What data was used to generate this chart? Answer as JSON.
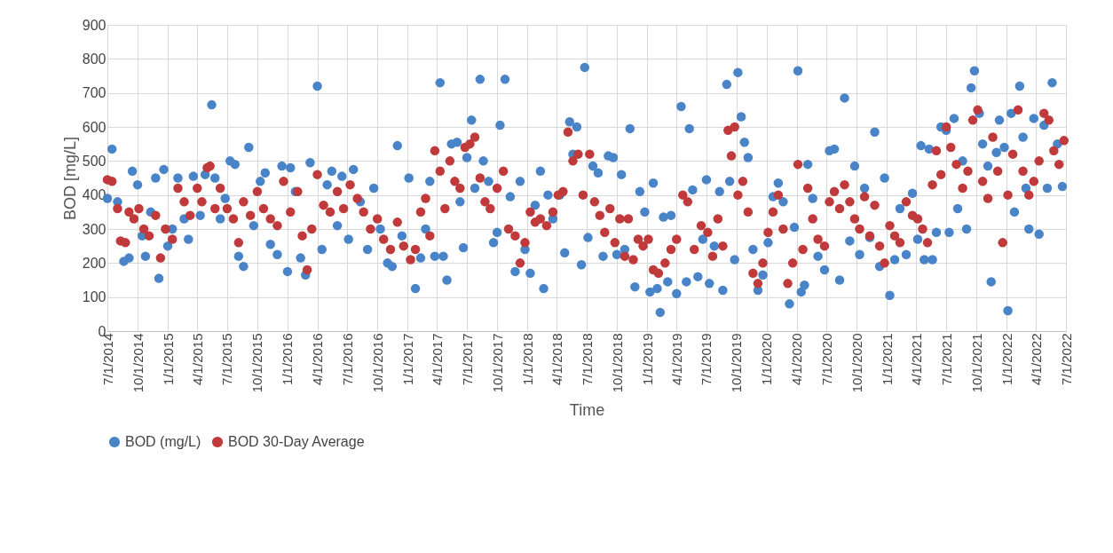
{
  "chart_data": {
    "type": "scatter",
    "xlabel": "Time",
    "ylabel": "BOD [mg/L]",
    "grid": true,
    "legend": "bottom",
    "marker": "circle",
    "xlim": [
      "2014-07-01",
      "2022-07-01"
    ],
    "xticks": [
      {
        "value": "2014-07-01",
        "label": "7/1/2014"
      },
      {
        "value": "2014-10-01",
        "label": "10/1/2014"
      },
      {
        "value": "2015-01-01",
        "label": "1/1/2015"
      },
      {
        "value": "2015-04-01",
        "label": "4/1/2015"
      },
      {
        "value": "2015-07-01",
        "label": "7/1/2015"
      },
      {
        "value": "2015-10-01",
        "label": "10/1/2015"
      },
      {
        "value": "2016-01-01",
        "label": "1/1/2016"
      },
      {
        "value": "2016-04-01",
        "label": "4/1/2016"
      },
      {
        "value": "2016-07-01",
        "label": "7/1/2016"
      },
      {
        "value": "2016-10-01",
        "label": "10/1/2016"
      },
      {
        "value": "2017-01-01",
        "label": "1/1/2017"
      },
      {
        "value": "2017-04-01",
        "label": "4/1/2017"
      },
      {
        "value": "2017-07-01",
        "label": "7/1/2017"
      },
      {
        "value": "2017-10-01",
        "label": "10/1/2017"
      },
      {
        "value": "2018-01-01",
        "label": "1/1/2018"
      },
      {
        "value": "2018-04-01",
        "label": "4/1/2018"
      },
      {
        "value": "2018-07-01",
        "label": "7/1/2018"
      },
      {
        "value": "2018-10-01",
        "label": "10/1/2018"
      },
      {
        "value": "2019-01-01",
        "label": "1/1/2019"
      },
      {
        "value": "2019-04-01",
        "label": "4/1/2019"
      },
      {
        "value": "2019-07-01",
        "label": "7/1/2019"
      },
      {
        "value": "2019-10-01",
        "label": "10/1/2019"
      },
      {
        "value": "2020-01-01",
        "label": "1/1/2020"
      },
      {
        "value": "2020-04-01",
        "label": "4/1/2020"
      },
      {
        "value": "2020-07-01",
        "label": "7/1/2020"
      },
      {
        "value": "2020-10-01",
        "label": "10/1/2020"
      },
      {
        "value": "2021-01-01",
        "label": "1/1/2021"
      },
      {
        "value": "2021-04-01",
        "label": "4/1/2021"
      },
      {
        "value": "2021-07-01",
        "label": "7/1/2021"
      },
      {
        "value": "2021-10-01",
        "label": "10/1/2021"
      },
      {
        "value": "2022-01-01",
        "label": "1/1/2022"
      },
      {
        "value": "2022-04-01",
        "label": "4/1/2022"
      },
      {
        "value": "2022-07-01",
        "label": "7/1/2022"
      }
    ],
    "ylim": [
      0,
      900
    ],
    "yticks": [
      0,
      100,
      200,
      300,
      400,
      500,
      600,
      700,
      800,
      900
    ],
    "series": [
      {
        "name": "BOD (mg/L)",
        "color": "#4a84c8",
        "x": [
          "2014-07-01",
          "2014-07-15",
          "2014-08-01",
          "2014-08-20",
          "2014-09-05",
          "2014-09-15",
          "2014-10-01",
          "2014-10-15",
          "2014-10-25",
          "2014-11-10",
          "2014-11-25",
          "2014-12-05",
          "2014-12-20",
          "2015-01-01",
          "2015-01-15",
          "2015-02-01",
          "2015-02-20",
          "2015-03-05",
          "2015-03-20",
          "2015-04-10",
          "2015-04-25",
          "2015-05-15",
          "2015-05-25",
          "2015-06-10",
          "2015-06-25",
          "2015-07-10",
          "2015-07-25",
          "2015-08-05",
          "2015-08-20",
          "2015-09-05",
          "2015-09-20",
          "2015-10-10",
          "2015-10-25",
          "2015-11-10",
          "2015-12-01",
          "2015-12-15",
          "2016-01-01",
          "2016-01-10",
          "2016-01-25",
          "2016-02-10",
          "2016-02-25",
          "2016-03-10",
          "2016-04-01",
          "2016-04-15",
          "2016-05-01",
          "2016-05-15",
          "2016-06-01",
          "2016-06-15",
          "2016-07-05",
          "2016-07-20",
          "2016-08-10",
          "2016-09-01",
          "2016-09-20",
          "2016-10-10",
          "2016-11-01",
          "2016-11-15",
          "2016-12-01",
          "2016-12-15",
          "2017-01-05",
          "2017-01-25",
          "2017-02-10",
          "2017-02-25",
          "2017-03-10",
          "2017-03-25",
          "2017-04-10",
          "2017-04-20",
          "2017-05-01",
          "2017-05-15",
          "2017-06-01",
          "2017-06-10",
          "2017-06-20",
          "2017-07-01",
          "2017-07-15",
          "2017-07-25",
          "2017-08-10",
          "2017-08-20",
          "2017-09-05",
          "2017-09-20",
          "2017-10-01",
          "2017-10-10",
          "2017-10-25",
          "2017-11-10",
          "2017-11-25",
          "2017-12-10",
          "2017-12-25",
          "2018-01-10",
          "2018-01-25",
          "2018-02-10",
          "2018-02-20",
          "2018-03-05",
          "2018-03-20",
          "2018-04-10",
          "2018-04-25",
          "2018-05-10",
          "2018-05-20",
          "2018-06-01",
          "2018-06-15",
          "2018-06-25",
          "2018-07-05",
          "2018-07-20",
          "2018-08-05",
          "2018-08-20",
          "2018-09-05",
          "2018-09-20",
          "2018-10-01",
          "2018-10-15",
          "2018-10-25",
          "2018-11-10",
          "2018-11-25",
          "2018-12-10",
          "2018-12-25",
          "2019-01-10",
          "2019-01-20",
          "2019-02-01",
          "2019-02-10",
          "2019-02-20",
          "2019-03-05",
          "2019-03-15",
          "2019-04-01",
          "2019-04-15",
          "2019-05-01",
          "2019-05-10",
          "2019-05-20",
          "2019-06-05",
          "2019-06-20",
          "2019-07-01",
          "2019-07-10",
          "2019-07-25",
          "2019-08-10",
          "2019-08-20",
          "2019-09-01",
          "2019-09-10",
          "2019-09-25",
          "2019-10-05",
          "2019-10-15",
          "2019-10-25",
          "2019-11-05",
          "2019-11-20",
          "2019-12-05",
          "2019-12-20",
          "2020-01-05",
          "2020-01-20",
          "2020-02-05",
          "2020-02-20",
          "2020-03-10",
          "2020-03-25",
          "2020-04-05",
          "2020-04-15",
          "2020-04-25",
          "2020-05-05",
          "2020-05-20",
          "2020-06-05",
          "2020-06-25",
          "2020-07-10",
          "2020-07-25",
          "2020-08-10",
          "2020-08-25",
          "2020-09-10",
          "2020-09-25",
          "2020-10-10",
          "2020-10-25",
          "2020-11-10",
          "2020-11-25",
          "2020-12-10",
          "2020-12-25",
          "2021-01-10",
          "2021-01-25",
          "2021-02-10",
          "2021-03-01",
          "2021-03-20",
          "2021-04-05",
          "2021-04-15",
          "2021-04-25",
          "2021-05-10",
          "2021-05-20",
          "2021-06-01",
          "2021-06-15",
          "2021-07-01",
          "2021-07-10",
          "2021-07-25",
          "2021-08-05",
          "2021-08-20",
          "2021-09-01",
          "2021-09-15",
          "2021-09-25",
          "2021-10-10",
          "2021-10-20",
          "2021-11-05",
          "2021-11-15",
          "2021-12-01",
          "2021-12-10",
          "2021-12-25",
          "2022-01-05",
          "2022-01-15",
          "2022-01-25",
          "2022-02-10",
          "2022-02-20",
          "2022-03-01",
          "2022-03-10",
          "2022-03-25",
          "2022-04-10",
          "2022-04-25",
          "2022-05-05",
          "2022-05-20",
          "2022-06-05",
          "2022-06-20"
        ],
        "values": [
          390,
          535,
          380,
          205,
          215,
          470,
          430,
          280,
          220,
          350,
          450,
          155,
          475,
          250,
          300,
          450,
          330,
          270,
          455,
          340,
          460,
          665,
          450,
          330,
          390,
          500,
          490,
          220,
          190,
          540,
          310,
          440,
          465,
          255,
          225,
          485,
          175,
          480,
          410,
          215,
          165,
          495,
          720,
          240,
          430,
          470,
          310,
          455,
          270,
          475,
          380,
          240,
          420,
          300,
          200,
          190,
          545,
          280,
          450,
          125,
          215,
          300,
          440,
          220,
          730,
          220,
          150,
          550,
          555,
          380,
          245,
          510,
          620,
          420,
          740,
          500,
          440,
          260,
          290,
          605,
          740,
          395,
          175,
          440,
          240,
          170,
          370,
          470,
          125,
          400,
          330,
          400,
          230,
          615,
          520,
          600,
          195,
          775,
          275,
          485,
          465,
          220,
          515,
          510,
          225,
          460,
          240,
          595,
          130,
          410,
          350,
          115,
          435,
          125,
          55,
          335,
          145,
          340,
          110,
          660,
          145,
          595,
          415,
          160,
          270,
          445,
          140,
          250,
          410,
          120,
          725,
          440,
          210,
          760,
          630,
          555,
          510,
          240,
          120,
          165,
          260,
          395,
          435,
          380,
          80,
          305,
          765,
          115,
          135,
          490,
          390,
          220,
          180,
          530,
          535,
          150,
          685,
          265,
          485,
          225,
          420,
          275,
          585,
          190,
          450,
          105,
          210,
          360,
          225,
          405,
          270,
          545,
          210,
          535,
          210,
          290,
          600,
          590,
          290,
          625,
          360,
          500,
          300,
          715,
          765,
          640,
          550,
          485,
          145,
          525,
          620,
          540,
          60,
          640,
          350,
          720,
          570,
          420,
          300,
          625,
          285,
          605,
          420,
          730,
          550,
          425
        ]
      },
      {
        "name": "BOD 30-Day Average",
        "color": "#c0393b",
        "x": [
          "2014-07-01",
          "2014-07-15",
          "2014-08-01",
          "2014-08-10",
          "2014-08-25",
          "2014-09-05",
          "2014-09-20",
          "2014-10-05",
          "2014-10-20",
          "2014-11-05",
          "2014-11-25",
          "2014-12-10",
          "2014-12-25",
          "2015-01-15",
          "2015-02-01",
          "2015-02-20",
          "2015-03-10",
          "2015-04-01",
          "2015-04-15",
          "2015-05-01",
          "2015-05-10",
          "2015-05-25",
          "2015-06-10",
          "2015-07-01",
          "2015-07-20",
          "2015-08-05",
          "2015-08-20",
          "2015-09-10",
          "2015-10-01",
          "2015-10-20",
          "2015-11-10",
          "2015-12-01",
          "2015-12-20",
          "2016-01-10",
          "2016-02-01",
          "2016-02-15",
          "2016-03-01",
          "2016-03-15",
          "2016-04-01",
          "2016-04-20",
          "2016-05-10",
          "2016-06-01",
          "2016-06-20",
          "2016-07-10",
          "2016-08-01",
          "2016-08-20",
          "2016-09-10",
          "2016-10-01",
          "2016-10-20",
          "2016-11-10",
          "2016-12-01",
          "2016-12-20",
          "2017-01-10",
          "2017-01-25",
          "2017-02-10",
          "2017-02-25",
          "2017-03-10",
          "2017-03-25",
          "2017-04-10",
          "2017-04-25",
          "2017-05-10",
          "2017-05-25",
          "2017-06-10",
          "2017-06-25",
          "2017-07-10",
          "2017-07-25",
          "2017-08-10",
          "2017-08-25",
          "2017-09-10",
          "2017-10-01",
          "2017-10-20",
          "2017-11-05",
          "2017-11-25",
          "2017-12-10",
          "2017-12-25",
          "2018-01-10",
          "2018-01-25",
          "2018-02-10",
          "2018-03-01",
          "2018-03-20",
          "2018-04-05",
          "2018-04-20",
          "2018-05-05",
          "2018-05-20",
          "2018-06-05",
          "2018-06-20",
          "2018-07-10",
          "2018-07-25",
          "2018-08-10",
          "2018-08-25",
          "2018-09-10",
          "2018-09-25",
          "2018-10-10",
          "2018-10-25",
          "2018-11-05",
          "2018-11-20",
          "2018-12-05",
          "2018-12-20",
          "2019-01-05",
          "2019-01-20",
          "2019-02-05",
          "2019-02-25",
          "2019-03-15",
          "2019-04-01",
          "2019-04-20",
          "2019-05-05",
          "2019-05-25",
          "2019-06-15",
          "2019-07-05",
          "2019-07-20",
          "2019-08-05",
          "2019-08-20",
          "2019-09-05",
          "2019-09-15",
          "2019-09-25",
          "2019-10-05",
          "2019-10-20",
          "2019-11-05",
          "2019-11-20",
          "2019-12-05",
          "2019-12-20",
          "2020-01-05",
          "2020-01-20",
          "2020-02-05",
          "2020-02-20",
          "2020-03-05",
          "2020-03-20",
          "2020-04-05",
          "2020-04-20",
          "2020-05-05",
          "2020-05-20",
          "2020-06-05",
          "2020-06-25",
          "2020-07-10",
          "2020-07-25",
          "2020-08-10",
          "2020-08-25",
          "2020-09-10",
          "2020-09-25",
          "2020-10-10",
          "2020-10-25",
          "2020-11-10",
          "2020-11-25",
          "2020-12-10",
          "2020-12-25",
          "2021-01-10",
          "2021-01-25",
          "2021-02-10",
          "2021-03-01",
          "2021-03-20",
          "2021-04-05",
          "2021-04-20",
          "2021-05-05",
          "2021-05-20",
          "2021-06-01",
          "2021-06-15",
          "2021-07-01",
          "2021-07-15",
          "2021-08-01",
          "2021-08-20",
          "2021-09-05",
          "2021-09-20",
          "2021-10-05",
          "2021-10-20",
          "2021-11-05",
          "2021-11-20",
          "2021-12-05",
          "2021-12-20",
          "2022-01-05",
          "2022-01-20",
          "2022-02-05",
          "2022-02-20",
          "2022-03-10",
          "2022-03-25",
          "2022-04-10",
          "2022-04-25",
          "2022-05-10",
          "2022-05-25",
          "2022-06-10",
          "2022-06-25"
        ],
        "values": [
          445,
          440,
          360,
          265,
          260,
          350,
          330,
          360,
          300,
          280,
          340,
          215,
          300,
          270,
          420,
          380,
          340,
          420,
          380,
          480,
          485,
          360,
          420,
          360,
          330,
          260,
          380,
          340,
          410,
          360,
          330,
          310,
          440,
          350,
          410,
          280,
          180,
          300,
          460,
          370,
          350,
          410,
          360,
          430,
          390,
          350,
          300,
          330,
          270,
          240,
          320,
          250,
          210,
          240,
          350,
          390,
          280,
          530,
          470,
          360,
          500,
          440,
          420,
          540,
          550,
          570,
          450,
          380,
          360,
          420,
          470,
          300,
          280,
          200,
          260,
          350,
          320,
          330,
          310,
          350,
          400,
          410,
          585,
          500,
          520,
          400,
          520,
          380,
          340,
          290,
          360,
          260,
          330,
          220,
          330,
          210,
          270,
          250,
          270,
          180,
          170,
          200,
          240,
          270,
          400,
          380,
          240,
          310,
          290,
          220,
          330,
          250,
          590,
          515,
          600,
          400,
          440,
          350,
          170,
          140,
          200,
          290,
          350,
          400,
          300,
          140,
          200,
          490,
          240,
          420,
          330,
          270,
          250,
          380,
          410,
          360,
          430,
          380,
          330,
          300,
          395,
          280,
          370,
          250,
          200,
          310,
          280,
          260,
          380,
          340,
          330,
          300,
          260,
          430,
          530,
          460,
          600,
          540,
          490,
          420,
          470,
          620,
          650,
          440,
          390,
          570,
          470,
          260,
          400,
          520,
          650,
          470,
          400,
          440,
          500,
          640,
          620,
          530,
          490,
          560
        ]
      }
    ]
  }
}
